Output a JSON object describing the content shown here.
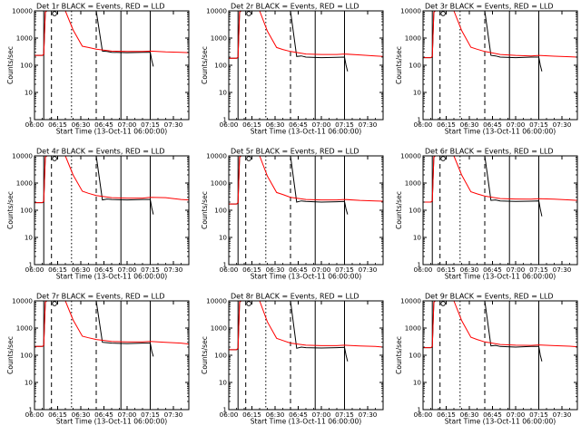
{
  "colors": {
    "events": "#000000",
    "lld": "#ff0000",
    "axes": "#000000"
  },
  "layout": {
    "rows": 3,
    "cols": 3
  },
  "chart_data": [
    {
      "type": "line",
      "title": "Det 1r BLACK = Events, RED = LLD",
      "xlabel": "Start Time (13-Oct-11 06:00:00)",
      "ylabel": "Counts/sec",
      "x_ticks": [
        "06:00",
        "06:15",
        "06:30",
        "06:45",
        "07:00",
        "07:15",
        "07:30"
      ],
      "xlim": [
        "06:00",
        "07:40"
      ],
      "y_ticks": [
        "1",
        "10",
        "100",
        "1000",
        "10000"
      ],
      "ylim": [
        1,
        10000
      ],
      "y_scale": "log",
      "series": [
        {
          "name": "Events",
          "color": "#000000",
          "x": [
            "06:00",
            "06:05",
            "06:06",
            "06:07",
            "06:08",
            "06:10",
            "06:40",
            "06:44",
            "06:47",
            "06:50",
            "07:00",
            "07:10",
            "07:15",
            "07:16",
            "07:17"
          ],
          "y": [
            230,
            230,
            240,
            9000,
            10000,
            10000,
            10000,
            330,
            320,
            300,
            290,
            300,
            300,
            150,
            90
          ]
        },
        {
          "name": "LLD",
          "color": "#ff0000",
          "x": [
            "06:00",
            "06:05",
            "06:06",
            "06:07",
            "06:08",
            "06:12",
            "06:20",
            "06:25",
            "06:31",
            "06:35",
            "06:40",
            "06:50",
            "07:00",
            "07:10",
            "07:15",
            "07:25",
            "07:35",
            "07:40"
          ],
          "y": [
            230,
            230,
            250,
            9000,
            10000,
            10000,
            10000,
            2000,
            500,
            450,
            390,
            330,
            320,
            320,
            330,
            310,
            300,
            290
          ]
        }
      ]
    },
    {
      "type": "line",
      "title": "Det 2r BLACK = Events, RED = LLD",
      "xlabel": "Start Time (13-Oct-11 06:00:00)",
      "ylabel": "Counts/sec",
      "x_ticks": [
        "06:00",
        "06:15",
        "06:30",
        "06:45",
        "07:00",
        "07:15",
        "07:30"
      ],
      "xlim": [
        "06:00",
        "07:40"
      ],
      "y_ticks": [
        "1",
        "10",
        "100",
        "1000",
        "10000"
      ],
      "ylim": [
        1,
        10000
      ],
      "y_scale": "log",
      "series": [
        {
          "name": "Events",
          "color": "#000000",
          "x": [
            "06:00",
            "06:05",
            "06:06",
            "06:07",
            "06:08",
            "06:10",
            "06:40",
            "06:44",
            "06:47",
            "06:50",
            "07:00",
            "07:10",
            "07:15",
            "07:16",
            "07:17"
          ],
          "y": [
            180,
            180,
            190,
            9000,
            10000,
            10000,
            10000,
            210,
            220,
            200,
            190,
            195,
            200,
            100,
            60
          ]
        },
        {
          "name": "LLD",
          "color": "#ff0000",
          "x": [
            "06:00",
            "06:05",
            "06:06",
            "06:07",
            "06:08",
            "06:12",
            "06:20",
            "06:25",
            "06:31",
            "06:35",
            "06:40",
            "06:50",
            "07:00",
            "07:10",
            "07:15",
            "07:25",
            "07:35",
            "07:40"
          ],
          "y": [
            180,
            180,
            200,
            9000,
            10000,
            10000,
            10000,
            1800,
            450,
            380,
            320,
            260,
            250,
            250,
            260,
            240,
            220,
            210
          ]
        }
      ]
    },
    {
      "type": "line",
      "title": "Det 3r BLACK = Events, RED = LLD",
      "xlabel": "Start Time (13-Oct-11 06:00:00)",
      "ylabel": "Counts/sec",
      "x_ticks": [
        "06:00",
        "06:15",
        "06:30",
        "06:45",
        "07:00",
        "07:15",
        "07:30"
      ],
      "xlim": [
        "06:00",
        "07:40"
      ],
      "y_ticks": [
        "1",
        "10",
        "100",
        "1000",
        "10000"
      ],
      "ylim": [
        1,
        10000
      ],
      "y_scale": "log",
      "series": [
        {
          "name": "Events",
          "color": "#000000",
          "x": [
            "06:00",
            "06:05",
            "06:06",
            "06:07",
            "06:08",
            "06:10",
            "06:40",
            "06:44",
            "06:47",
            "06:50",
            "07:00",
            "07:10",
            "07:15",
            "07:16",
            "07:17"
          ],
          "y": [
            190,
            190,
            200,
            9000,
            10000,
            10000,
            10000,
            230,
            220,
            200,
            190,
            200,
            200,
            100,
            60
          ]
        },
        {
          "name": "LLD",
          "color": "#ff0000",
          "x": [
            "06:00",
            "06:05",
            "06:06",
            "06:07",
            "06:08",
            "06:12",
            "06:20",
            "06:25",
            "06:31",
            "06:35",
            "06:40",
            "06:50",
            "07:00",
            "07:10",
            "07:15",
            "07:25",
            "07:35",
            "07:40"
          ],
          "y": [
            190,
            190,
            210,
            9000,
            10000,
            10000,
            10000,
            1900,
            460,
            390,
            320,
            250,
            230,
            220,
            230,
            215,
            205,
            200
          ]
        }
      ]
    },
    {
      "type": "line",
      "title": "Det 4r BLACK = Events, RED = LLD",
      "xlabel": "Start Time (13-Oct-11 06:00:00)",
      "ylabel": "Counts/sec",
      "x_ticks": [
        "06:00",
        "06:15",
        "06:30",
        "06:45",
        "07:00",
        "07:15",
        "07:30"
      ],
      "xlim": [
        "06:00",
        "07:40"
      ],
      "y_ticks": [
        "1",
        "10",
        "100",
        "1000",
        "10000"
      ],
      "ylim": [
        1,
        10000
      ],
      "y_scale": "log",
      "series": [
        {
          "name": "Events",
          "color": "#000000",
          "x": [
            "06:00",
            "06:05",
            "06:06",
            "06:07",
            "06:08",
            "06:10",
            "06:40",
            "06:44",
            "06:47",
            "06:50",
            "07:00",
            "07:10",
            "07:15",
            "07:16",
            "07:17"
          ],
          "y": [
            190,
            190,
            200,
            9000,
            10000,
            10000,
            10000,
            240,
            260,
            250,
            240,
            250,
            250,
            120,
            70
          ]
        },
        {
          "name": "LLD",
          "color": "#ff0000",
          "x": [
            "06:00",
            "06:05",
            "06:06",
            "06:07",
            "06:08",
            "06:12",
            "06:20",
            "06:25",
            "06:31",
            "06:35",
            "06:40",
            "06:50",
            "07:00",
            "07:10",
            "07:15",
            "07:25",
            "07:35",
            "07:40"
          ],
          "y": [
            190,
            190,
            210,
            9000,
            10000,
            10000,
            10000,
            2000,
            500,
            420,
            350,
            290,
            280,
            280,
            300,
            290,
            250,
            240
          ]
        }
      ]
    },
    {
      "type": "line",
      "title": "Det 5r BLACK = Events, RED = LLD",
      "xlabel": "Start Time (13-Oct-11 06:00:00)",
      "ylabel": "Counts/sec",
      "x_ticks": [
        "06:00",
        "06:15",
        "06:30",
        "06:45",
        "07:00",
        "07:15",
        "07:30"
      ],
      "xlim": [
        "06:00",
        "07:40"
      ],
      "y_ticks": [
        "1",
        "10",
        "100",
        "1000",
        "10000"
      ],
      "ylim": [
        1,
        10000
      ],
      "y_scale": "log",
      "series": [
        {
          "name": "Events",
          "color": "#000000",
          "x": [
            "06:00",
            "06:05",
            "06:06",
            "06:07",
            "06:08",
            "06:10",
            "06:40",
            "06:44",
            "06:47",
            "06:50",
            "07:00",
            "07:10",
            "07:15",
            "07:16",
            "07:17"
          ],
          "y": [
            170,
            170,
            180,
            9000,
            10000,
            10000,
            10000,
            200,
            220,
            210,
            200,
            205,
            210,
            110,
            70
          ]
        },
        {
          "name": "LLD",
          "color": "#ff0000",
          "x": [
            "06:00",
            "06:05",
            "06:06",
            "06:07",
            "06:08",
            "06:12",
            "06:20",
            "06:25",
            "06:31",
            "06:35",
            "06:40",
            "06:50",
            "07:00",
            "07:10",
            "07:15",
            "07:25",
            "07:35",
            "07:40"
          ],
          "y": [
            170,
            170,
            190,
            9000,
            10000,
            10000,
            10000,
            1800,
            450,
            380,
            300,
            250,
            240,
            240,
            250,
            230,
            220,
            215
          ]
        }
      ]
    },
    {
      "type": "line",
      "title": "Det 6r BLACK = Events, RED = LLD",
      "xlabel": "Start Time (13-Oct-11 06:00:00)",
      "ylabel": "Counts/sec",
      "x_ticks": [
        "06:00",
        "06:15",
        "06:30",
        "06:45",
        "07:00",
        "07:15",
        "07:30"
      ],
      "xlim": [
        "06:00",
        "07:40"
      ],
      "y_ticks": [
        "1",
        "10",
        "100",
        "1000",
        "10000"
      ],
      "ylim": [
        1,
        10000
      ],
      "y_scale": "log",
      "series": [
        {
          "name": "Events",
          "color": "#000000",
          "x": [
            "06:00",
            "06:05",
            "06:06",
            "06:07",
            "06:08",
            "06:10",
            "06:40",
            "06:44",
            "06:47",
            "06:50",
            "07:00",
            "07:10",
            "07:15",
            "07:16",
            "07:17"
          ],
          "y": [
            200,
            200,
            210,
            9000,
            10000,
            10000,
            10000,
            230,
            240,
            220,
            210,
            215,
            220,
            110,
            60
          ]
        },
        {
          "name": "LLD",
          "color": "#ff0000",
          "x": [
            "06:00",
            "06:05",
            "06:06",
            "06:07",
            "06:08",
            "06:12",
            "06:20",
            "06:25",
            "06:31",
            "06:35",
            "06:40",
            "06:50",
            "07:00",
            "07:10",
            "07:15",
            "07:25",
            "07:35",
            "07:40"
          ],
          "y": [
            200,
            200,
            220,
            9000,
            10000,
            10000,
            10000,
            2000,
            480,
            400,
            330,
            270,
            260,
            255,
            265,
            255,
            240,
            230
          ]
        }
      ]
    },
    {
      "type": "line",
      "title": "Det 7r BLACK = Events, RED = LLD",
      "xlabel": "Start Time (13-Oct-11 06:00:00)",
      "ylabel": "Counts/sec",
      "x_ticks": [
        "06:00",
        "06:15",
        "06:30",
        "06:45",
        "07:00",
        "07:15",
        "07:30"
      ],
      "xlim": [
        "06:00",
        "07:40"
      ],
      "y_ticks": [
        "1",
        "10",
        "100",
        "1000",
        "10000"
      ],
      "ylim": [
        1,
        10000
      ],
      "y_scale": "log",
      "series": [
        {
          "name": "Events",
          "color": "#000000",
          "x": [
            "06:00",
            "06:05",
            "06:06",
            "06:07",
            "06:08",
            "06:10",
            "06:40",
            "06:44",
            "06:47",
            "06:50",
            "07:00",
            "07:10",
            "07:15",
            "07:16",
            "07:17"
          ],
          "y": [
            210,
            210,
            220,
            9000,
            10000,
            10000,
            10000,
            300,
            290,
            280,
            270,
            280,
            280,
            140,
            90
          ]
        },
        {
          "name": "LLD",
          "color": "#ff0000",
          "x": [
            "06:00",
            "06:05",
            "06:06",
            "06:07",
            "06:08",
            "06:12",
            "06:20",
            "06:25",
            "06:31",
            "06:35",
            "06:40",
            "06:50",
            "07:00",
            "07:10",
            "07:15",
            "07:25",
            "07:35",
            "07:40"
          ],
          "y": [
            210,
            210,
            230,
            9000,
            10000,
            10000,
            10000,
            2000,
            500,
            440,
            380,
            320,
            310,
            310,
            320,
            300,
            280,
            260
          ]
        }
      ]
    },
    {
      "type": "line",
      "title": "Det 8r BLACK = Events, RED = LLD",
      "xlabel": "Start Time (13-Oct-11 06:00:00)",
      "ylabel": "Counts/sec",
      "x_ticks": [
        "06:00",
        "06:15",
        "06:30",
        "06:45",
        "07:00",
        "07:15",
        "07:30"
      ],
      "xlim": [
        "06:00",
        "07:40"
      ],
      "y_ticks": [
        "1",
        "10",
        "100",
        "1000",
        "10000"
      ],
      "ylim": [
        1,
        10000
      ],
      "y_scale": "log",
      "series": [
        {
          "name": "Events",
          "color": "#000000",
          "x": [
            "06:00",
            "06:05",
            "06:06",
            "06:07",
            "06:08",
            "06:10",
            "06:40",
            "06:44",
            "06:47",
            "06:50",
            "07:00",
            "07:10",
            "07:15",
            "07:16",
            "07:17"
          ],
          "y": [
            160,
            160,
            170,
            9000,
            10000,
            10000,
            10000,
            180,
            200,
            190,
            185,
            190,
            195,
            100,
            60
          ]
        },
        {
          "name": "LLD",
          "color": "#ff0000",
          "x": [
            "06:00",
            "06:05",
            "06:06",
            "06:07",
            "06:08",
            "06:12",
            "06:20",
            "06:25",
            "06:31",
            "06:35",
            "06:40",
            "06:50",
            "07:00",
            "07:10",
            "07:15",
            "07:25",
            "07:35",
            "07:40"
          ],
          "y": [
            160,
            160,
            180,
            9000,
            10000,
            10000,
            10000,
            1700,
            420,
            350,
            280,
            235,
            225,
            225,
            235,
            220,
            210,
            200
          ]
        }
      ]
    },
    {
      "type": "line",
      "title": "Det 9r BLACK = Events, RED = LLD",
      "xlabel": "Start Time (13-Oct-11 06:00:00)",
      "ylabel": "Counts/sec",
      "x_ticks": [
        "06:00",
        "06:15",
        "06:30",
        "06:45",
        "07:00",
        "07:15",
        "07:30"
      ],
      "xlim": [
        "06:00",
        "07:40"
      ],
      "y_ticks": [
        "1",
        "10",
        "100",
        "1000",
        "10000"
      ],
      "ylim": [
        1,
        10000
      ],
      "y_scale": "log",
      "series": [
        {
          "name": "Events",
          "color": "#000000",
          "x": [
            "06:00",
            "06:05",
            "06:06",
            "06:07",
            "06:08",
            "06:10",
            "06:40",
            "06:44",
            "06:47",
            "06:50",
            "07:00",
            "07:10",
            "07:15",
            "07:16",
            "07:17"
          ],
          "y": [
            190,
            190,
            200,
            9000,
            10000,
            10000,
            10000,
            220,
            230,
            210,
            200,
            210,
            210,
            100,
            60
          ]
        },
        {
          "name": "LLD",
          "color": "#ff0000",
          "x": [
            "06:00",
            "06:05",
            "06:06",
            "06:07",
            "06:08",
            "06:12",
            "06:20",
            "06:25",
            "06:31",
            "06:35",
            "06:40",
            "06:50",
            "07:00",
            "07:10",
            "07:15",
            "07:25",
            "07:35",
            "07:40"
          ],
          "y": [
            190,
            190,
            210,
            9000,
            10000,
            10000,
            10000,
            1900,
            460,
            380,
            310,
            250,
            235,
            230,
            240,
            225,
            215,
            205
          ]
        }
      ]
    }
  ]
}
